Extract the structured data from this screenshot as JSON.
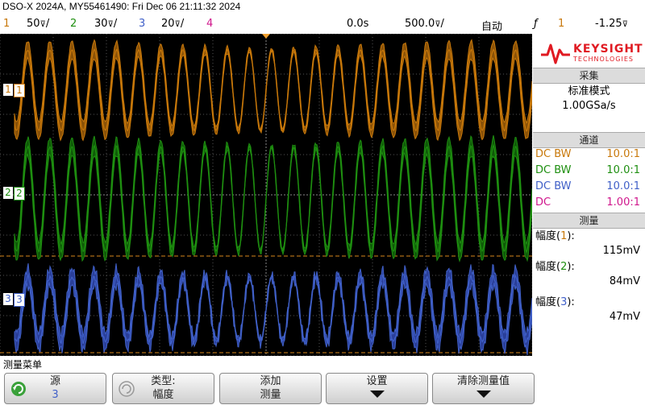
{
  "title": "DSO-X 2024A, MY55461490: Fri Dec 06 21:11:32 2024",
  "status": {
    "ch1_num": "1",
    "ch1_scale": "50́/",
    "ch2_num": "2",
    "ch2_scale": "30́/",
    "ch3_num": "3",
    "ch3_scale": "20́/",
    "ch4_num": "4",
    "time_pos": "0.0s",
    "time_scale": "500.0̸/",
    "trigger_mode": "自动",
    "trig_edge": "ƒ",
    "trig_source": "1",
    "trig_level": "-1.25́"
  },
  "colors": {
    "ch1": "#c8780a",
    "ch2": "#1e8f10",
    "ch3": "#4060c8",
    "ch4": "#d0168c",
    "ch1_fill": "#8a5208",
    "ch2_fill": "#0f5a08",
    "ch3_fill": "#2a3f9a"
  },
  "channel_markers": {
    "ch1": "1",
    "ch2": "2",
    "ch3": "3"
  },
  "sidebar": {
    "brand": "KEYSIGHT",
    "brand_sub": "TECHNOLOGIES",
    "acq_header": "采集",
    "acq_mode": "标准模式",
    "acq_rate": "1.00GSa/s",
    "channels_header": "通道",
    "channels": [
      {
        "coupling": "DC BW",
        "probe": "10.0:1"
      },
      {
        "coupling": "DC BW",
        "probe": "10.0:1"
      },
      {
        "coupling": "DC BW",
        "probe": "10.0:1"
      },
      {
        "coupling": "DC",
        "probe": "1.00:1"
      }
    ],
    "measure_header": "测量",
    "measurements": [
      {
        "label_pre": "幅度(",
        "ch": "1",
        "label_post": "):",
        "value": "115mV"
      },
      {
        "label_pre": "幅度(",
        "ch": "2",
        "label_post": "):",
        "value": "84mV"
      },
      {
        "label_pre": "幅度(",
        "ch": "3",
        "label_post": "):",
        "value": "47mV"
      }
    ]
  },
  "menu_title": "测量菜单",
  "softkeys": [
    {
      "line1": "源",
      "line2": "3"
    },
    {
      "line1": "类型:",
      "line2": "幅度"
    },
    {
      "line1": "添加",
      "line2": "测量"
    },
    {
      "line1": "设置",
      "line2": ""
    },
    {
      "line1": "清除测量值",
      "line2": ""
    }
  ]
}
